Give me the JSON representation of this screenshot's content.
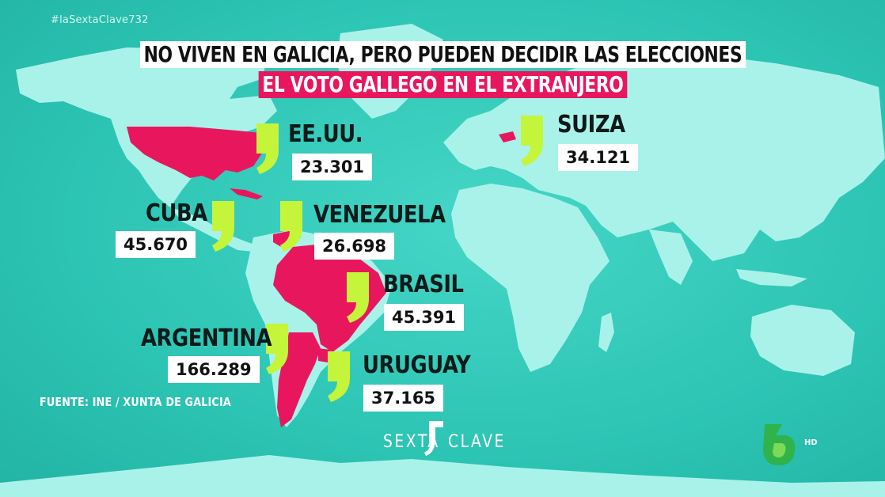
{
  "hashtag": "#laSextaClave732",
  "title_line1": "NO VIVEN EN GALICIA, PERO PUEDEN DECIDIR LAS ELECCIONES",
  "title_line2": "EL VOTO GALLEGO EN EL EXTRANJERO",
  "source": "FUENTE: INE / XUNTA DE GALICIA",
  "colors": {
    "ocean": "#2fc7b6",
    "land": "#a9f2ea",
    "highlight": "#e8175d",
    "comma": "#c4f53a"
  },
  "countries": [
    {
      "name": "EE.UU.",
      "value": "23.301"
    },
    {
      "name": "SUIZA",
      "value": "34.121"
    },
    {
      "name": "CUBA",
      "value": "45.670"
    },
    {
      "name": "VENEZUELA",
      "value": "26.698"
    },
    {
      "name": "BRASIL",
      "value": "45.391"
    },
    {
      "name": "ARGENTINA",
      "value": "166.289"
    },
    {
      "name": "URUGUAY",
      "value": "37.165"
    }
  ],
  "brand": {
    "program_left": "SEXTA",
    "program_right": "CLAVE",
    "channel_icon": "lasexta-6-logo",
    "hd": "HD"
  }
}
